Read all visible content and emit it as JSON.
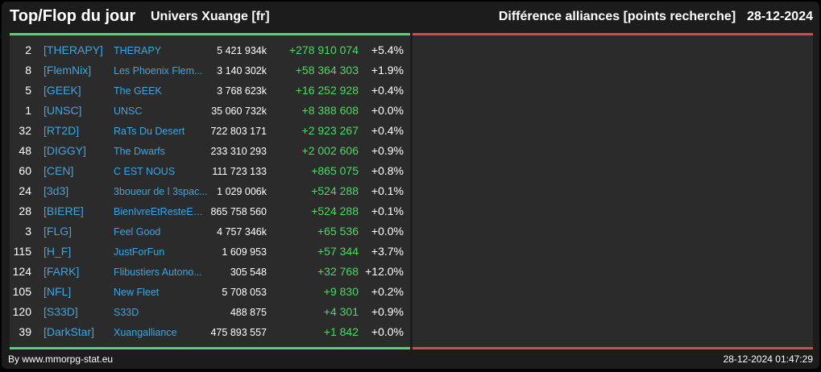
{
  "header": {
    "title": "Top/Flop du jour",
    "subtitle": "Univers Xuange [fr]",
    "metric": "Différence alliances [points recherche]",
    "date": "28-12-2024"
  },
  "colors": {
    "positive": "#4cd964",
    "negative": "#d84a44",
    "link": "#3ba6e0"
  },
  "top": [
    {
      "rank": "2",
      "tag": "[THERAPY]",
      "name": "THERAPY",
      "points": "5 421 934k",
      "diff": "+278 910 074",
      "pct": "+5.4%"
    },
    {
      "rank": "8",
      "tag": "[FlemNix]",
      "name": "Les Phoenix Flem...",
      "points": "3 140 302k",
      "diff": "+58 364 303",
      "pct": "+1.9%"
    },
    {
      "rank": "5",
      "tag": "[GEEK]",
      "name": "The GEEK",
      "points": "3 768 623k",
      "diff": "+16 252 928",
      "pct": "+0.4%"
    },
    {
      "rank": "1",
      "tag": "[UNSC]",
      "name": "UNSC",
      "points": "35 060 732k",
      "diff": "+8 388 608",
      "pct": "+0.0%"
    },
    {
      "rank": "32",
      "tag": "[RT2D]",
      "name": "RaTs Du Desert",
      "points": "722 803 171",
      "diff": "+2 923 267",
      "pct": "+0.4%"
    },
    {
      "rank": "48",
      "tag": "[DIGGY]",
      "name": "The Dwarfs",
      "points": "233 310 293",
      "diff": "+2 002 606",
      "pct": "+0.9%"
    },
    {
      "rank": "60",
      "tag": "[CEN]",
      "name": "C EST NOUS",
      "points": "111 723 133",
      "diff": "+865 075",
      "pct": "+0.8%"
    },
    {
      "rank": "24",
      "tag": "[3d3]",
      "name": "3boueur de l 3spac...",
      "points": "1 029 006k",
      "diff": "+524 288",
      "pct": "+0.1%"
    },
    {
      "rank": "28",
      "tag": "[BIERE]",
      "name": "BienIvreEtResteEC...",
      "points": "865 758 560",
      "diff": "+524 288",
      "pct": "+0.1%"
    },
    {
      "rank": "3",
      "tag": "[FLG]",
      "name": "Feel Good",
      "points": "4 757 346k",
      "diff": "+65 536",
      "pct": "+0.0%"
    },
    {
      "rank": "115",
      "tag": "[H_F]",
      "name": "JustForFun",
      "points": "1 609 953",
      "diff": "+57 344",
      "pct": "+3.7%"
    },
    {
      "rank": "124",
      "tag": "[FARK]",
      "name": "Flibustiers Autono...",
      "points": "305 548",
      "diff": "+32 768",
      "pct": "+12.0%"
    },
    {
      "rank": "105",
      "tag": "[NFL]",
      "name": "New Fleet",
      "points": "5 708 053",
      "diff": "+9 830",
      "pct": "+0.2%"
    },
    {
      "rank": "120",
      "tag": "[S33D]",
      "name": "S33D",
      "points": "488 875",
      "diff": "+4 301",
      "pct": "+0.9%"
    },
    {
      "rank": "39",
      "tag": "[DarkStar]",
      "name": "Xuangalliance",
      "points": "475 893 557",
      "diff": "+1 842",
      "pct": "+0.0%"
    }
  ],
  "footer": {
    "source": "By www.mmorpg-stat.eu",
    "timestamp": "28-12-2024 01:47:29"
  }
}
